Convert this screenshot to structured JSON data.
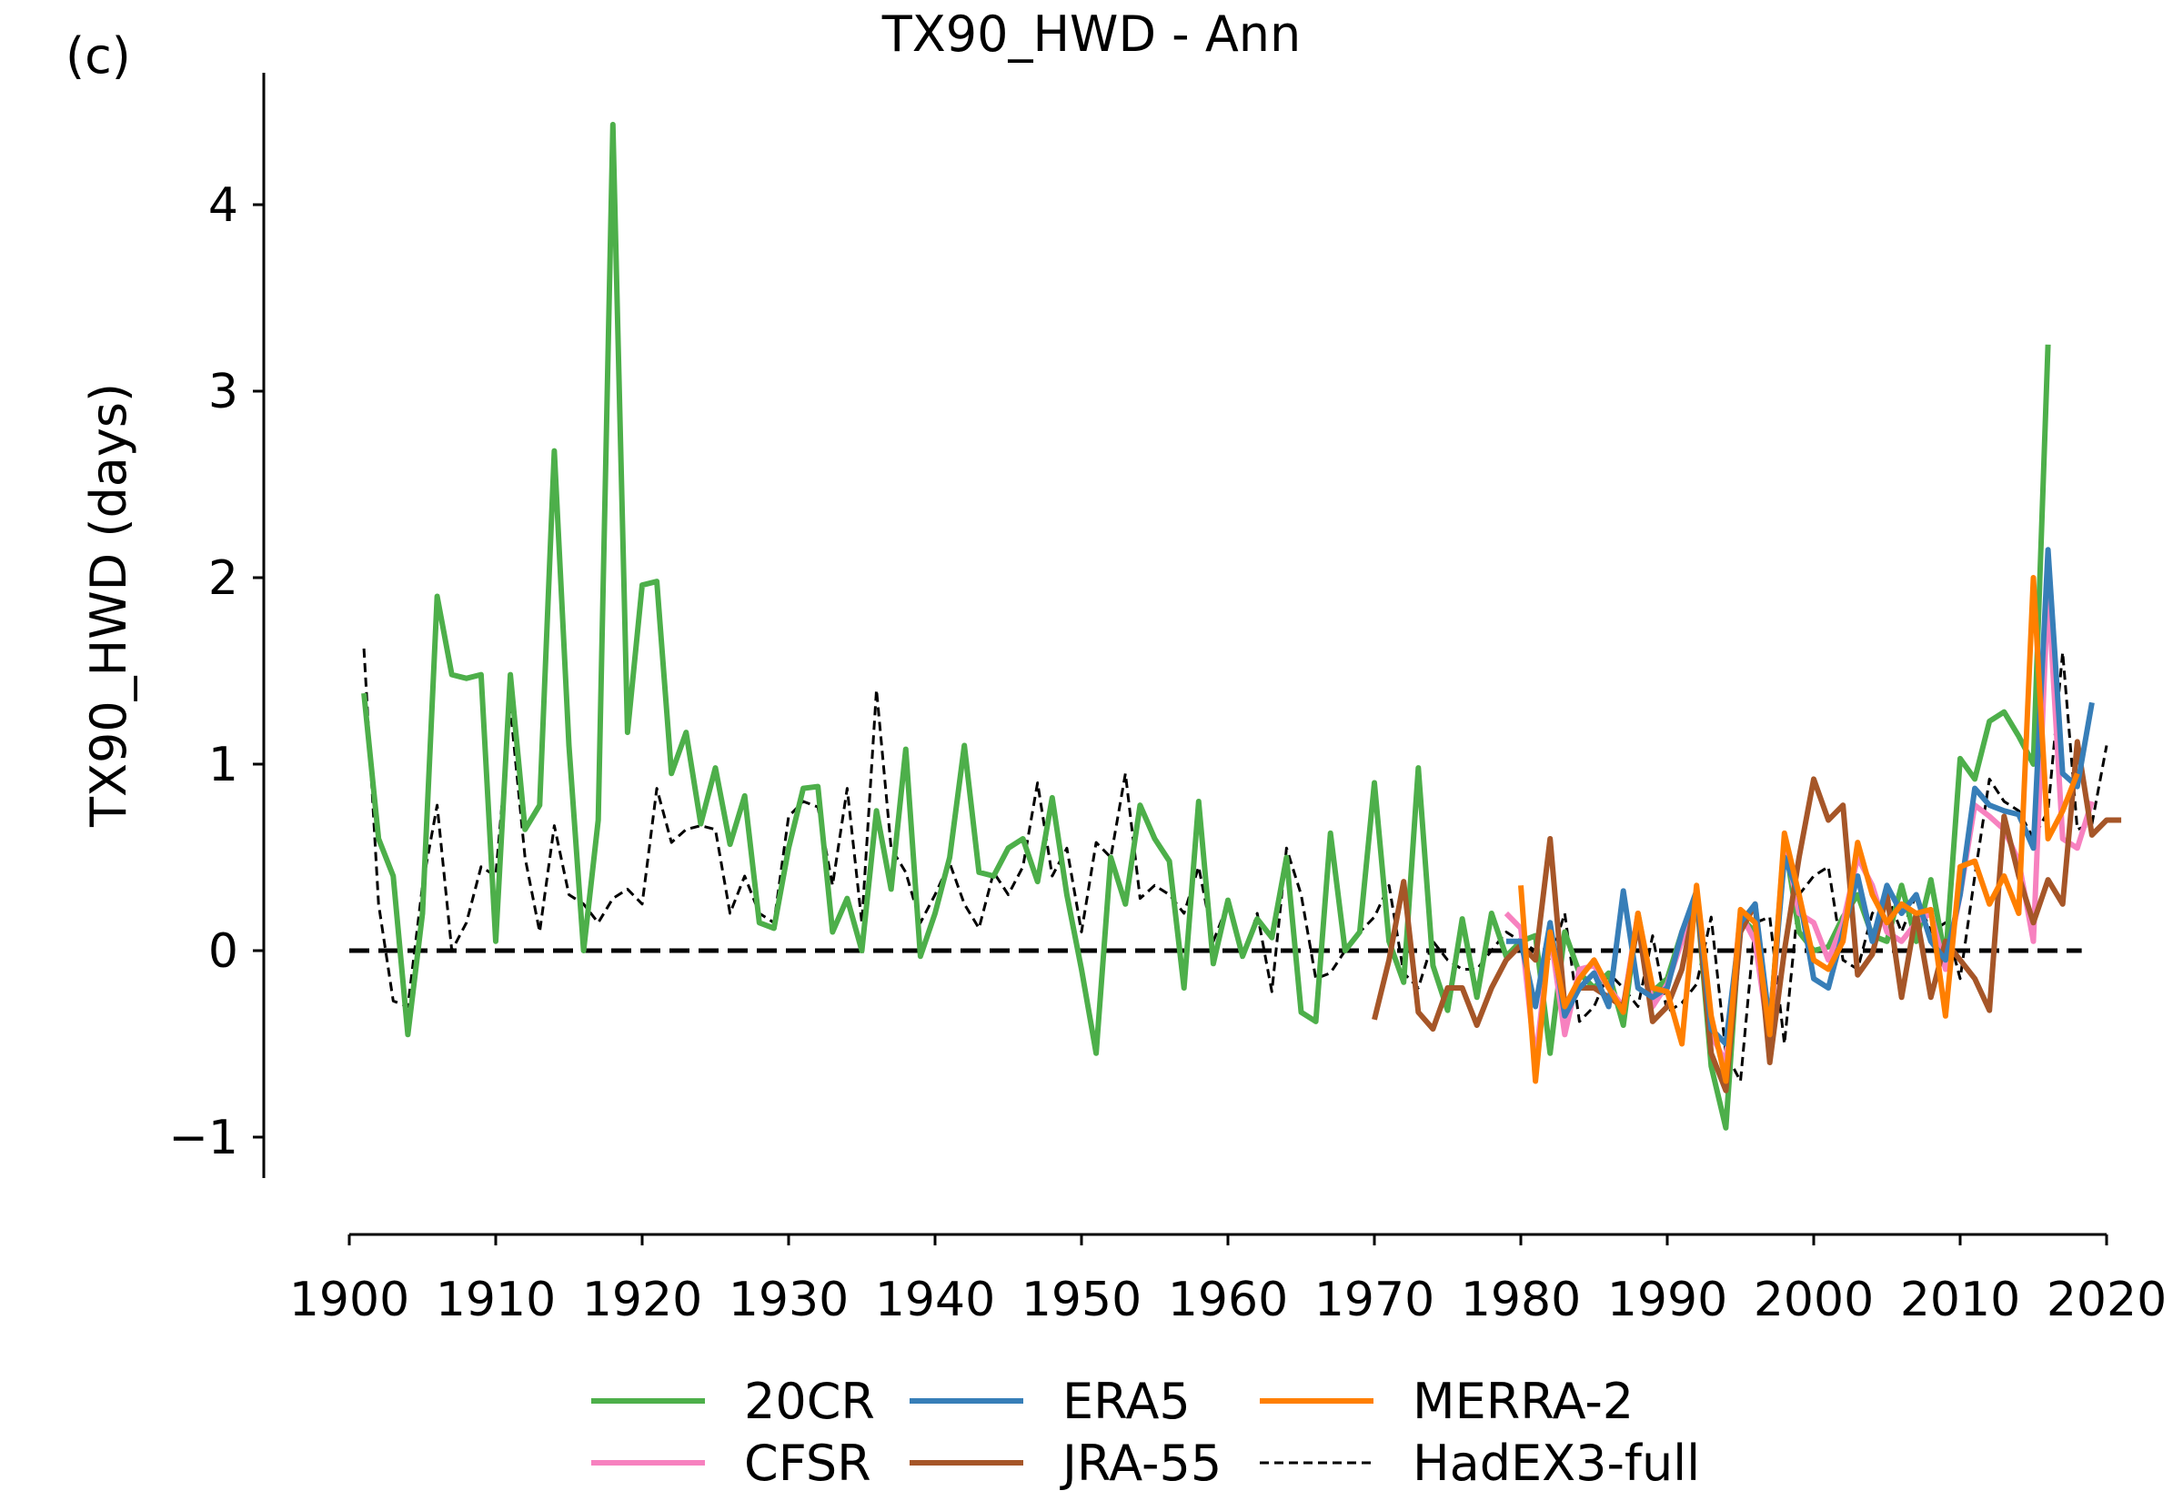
{
  "panel_label": "(c)",
  "chart_data": {
    "type": "line",
    "title": "TX90_HWD - Ann",
    "xlabel": "",
    "ylabel": "TX90_HWD (days)",
    "xlim": [
      1900,
      2020
    ],
    "ylim": [
      -1.25,
      4.7
    ],
    "xticks": [
      1900,
      1910,
      1920,
      1930,
      1940,
      1950,
      1960,
      1970,
      1980,
      1990,
      2000,
      2010,
      2020
    ],
    "yticks": [
      -1,
      0,
      1,
      2,
      3,
      4
    ],
    "ytick_labels": [
      "−1",
      "0",
      "1",
      "2",
      "3",
      "4"
    ],
    "zero_line": {
      "y": 0,
      "style": "dashed",
      "color": "#000000"
    },
    "grid": false,
    "legend": {
      "position": "bottom-center",
      "columns": 3
    },
    "series": [
      {
        "name": "20CR",
        "color": "#4daf4a",
        "dash": "solid",
        "x_start": 1901,
        "values": [
          1.38,
          0.6,
          0.4,
          -0.45,
          0.2,
          1.9,
          1.48,
          1.46,
          1.48,
          0.05,
          1.48,
          0.65,
          0.78,
          2.68,
          1.1,
          0.0,
          0.7,
          4.43,
          1.17,
          1.96,
          1.98,
          0.95,
          1.17,
          0.68,
          0.98,
          0.57,
          0.83,
          0.15,
          0.12,
          0.55,
          0.87,
          0.88,
          0.1,
          0.28,
          0.0,
          0.75,
          0.33,
          1.08,
          -0.03,
          0.2,
          0.5,
          1.1,
          0.42,
          0.4,
          0.55,
          0.6,
          0.37,
          0.82,
          0.3,
          -0.1,
          -0.55,
          0.5,
          0.25,
          0.78,
          0.6,
          0.48,
          -0.2,
          0.8,
          -0.07,
          0.27,
          -0.03,
          0.17,
          0.07,
          0.5,
          -0.33,
          -0.38,
          0.63,
          0.0,
          0.1,
          0.9,
          0.05,
          -0.17,
          0.98,
          -0.08,
          -0.32,
          0.17,
          -0.25,
          0.2,
          -0.03,
          0.05,
          0.08,
          -0.55,
          0.1,
          -0.12,
          -0.2,
          -0.12,
          -0.4,
          0.2,
          -0.22,
          -0.15,
          0.1,
          0.3,
          -0.62,
          -0.95,
          0.18,
          0.1,
          -0.43,
          0.6,
          0.1,
          0.0,
          0.02,
          0.18,
          0.3,
          0.08,
          0.05,
          0.35,
          0.05,
          0.38,
          -0.05,
          1.03,
          0.92,
          1.23,
          1.28,
          1.15,
          1.0,
          3.25
        ]
      },
      {
        "name": "CFSR",
        "color": "#f781bf",
        "dash": "solid",
        "x_start": 1979,
        "values": [
          0.2,
          0.12,
          -0.6,
          0.1,
          -0.45,
          -0.1,
          -0.08,
          -0.2,
          -0.3,
          0.2,
          -0.3,
          -0.18,
          0.05,
          0.3,
          -0.45,
          -0.6,
          0.2,
          0.05,
          -0.5,
          0.6,
          0.2,
          0.15,
          -0.05,
          0.15,
          0.5,
          0.35,
          0.1,
          0.05,
          0.15,
          0.2,
          -0.1,
          0.3,
          0.78,
          0.72,
          0.65,
          0.48,
          0.05,
          1.95,
          0.6,
          0.55,
          0.8
        ]
      },
      {
        "name": "ERA5",
        "color": "#377eb8",
        "dash": "solid",
        "x_start": 1979,
        "values": [
          0.05,
          0.05,
          -0.3,
          0.15,
          -0.35,
          -0.2,
          -0.12,
          -0.3,
          0.32,
          -0.2,
          -0.25,
          -0.2,
          0.1,
          0.32,
          -0.42,
          -0.5,
          0.15,
          0.25,
          -0.4,
          0.5,
          0.3,
          -0.15,
          -0.2,
          0.1,
          0.4,
          0.05,
          0.35,
          0.2,
          0.3,
          0.05,
          -0.05,
          0.3,
          0.87,
          0.78,
          0.75,
          0.73,
          0.55,
          2.15,
          0.95,
          0.88,
          1.33
        ]
      },
      {
        "name": "JRA-55",
        "color": "#a65628",
        "dash": "solid",
        "x_start": 1970,
        "values": [
          -0.37,
          -0.05,
          0.37,
          -0.33,
          -0.42,
          -0.2,
          -0.2,
          -0.4,
          -0.2,
          -0.05,
          0.03,
          -0.05,
          0.6,
          -0.3,
          -0.2,
          -0.2,
          -0.25,
          -0.3,
          0.15,
          -0.38,
          -0.3,
          -0.1,
          0.3,
          -0.55,
          -0.75,
          0.1,
          0.25,
          -0.6,
          0.0,
          0.5,
          0.92,
          0.7,
          0.78,
          -0.13,
          -0.02,
          0.3,
          -0.25,
          0.2,
          -0.25,
          0.05,
          -0.05,
          -0.15,
          -0.32,
          0.72,
          0.4,
          0.15,
          0.38,
          0.25,
          1.12,
          0.62,
          0.7,
          0.7
        ]
      },
      {
        "name": "MERRA-2",
        "color": "#ff7f00",
        "dash": "solid",
        "x_start": 1980,
        "values": [
          0.35,
          -0.7,
          0.1,
          -0.3,
          -0.15,
          -0.05,
          -0.2,
          -0.33,
          0.2,
          -0.2,
          -0.22,
          -0.5,
          0.35,
          -0.35,
          -0.7,
          0.22,
          0.15,
          -0.45,
          0.63,
          0.3,
          -0.05,
          -0.1,
          0.05,
          0.58,
          0.3,
          0.15,
          0.25,
          0.2,
          0.22,
          -0.35,
          0.45,
          0.48,
          0.25,
          0.4,
          0.2,
          2.0,
          0.6,
          0.75,
          0.95
        ]
      },
      {
        "name": "HadEX3-full",
        "color": "#000000",
        "dash": "thin-dashed",
        "x_start": 1901,
        "values": [
          1.62,
          0.25,
          -0.27,
          -0.3,
          0.35,
          0.78,
          0.0,
          0.15,
          0.45,
          0.4,
          1.3,
          0.5,
          0.1,
          0.67,
          0.3,
          0.25,
          0.15,
          0.28,
          0.33,
          0.25,
          0.87,
          0.58,
          0.65,
          0.67,
          0.65,
          0.2,
          0.4,
          0.2,
          0.15,
          0.72,
          0.8,
          0.77,
          0.35,
          0.87,
          0.15,
          1.4,
          0.55,
          0.42,
          0.15,
          0.3,
          0.47,
          0.25,
          0.12,
          0.42,
          0.3,
          0.45,
          0.9,
          0.4,
          0.55,
          0.1,
          0.58,
          0.5,
          0.95,
          0.28,
          0.35,
          0.3,
          0.2,
          0.45,
          0.05,
          0.25,
          -0.05,
          0.2,
          -0.22,
          0.55,
          0.3,
          -0.15,
          -0.12,
          0.0,
          0.1,
          0.18,
          0.35,
          -0.12,
          -0.2,
          0.05,
          -0.05,
          -0.1,
          -0.1,
          0.0,
          0.1,
          0.05,
          0.0,
          -0.05,
          0.2,
          -0.38,
          -0.3,
          -0.12,
          -0.2,
          -0.3,
          0.08,
          -0.33,
          -0.28,
          -0.18,
          0.18,
          -0.55,
          -0.7,
          0.15,
          0.18,
          -0.5,
          0.3,
          0.4,
          0.45,
          -0.05,
          -0.1,
          0.2,
          0.3,
          0.1,
          0.3,
          0.1,
          0.15,
          -0.15,
          0.4,
          0.92,
          0.8,
          0.75,
          0.6,
          0.75,
          1.6,
          0.65,
          0.68,
          1.1
        ]
      }
    ]
  }
}
